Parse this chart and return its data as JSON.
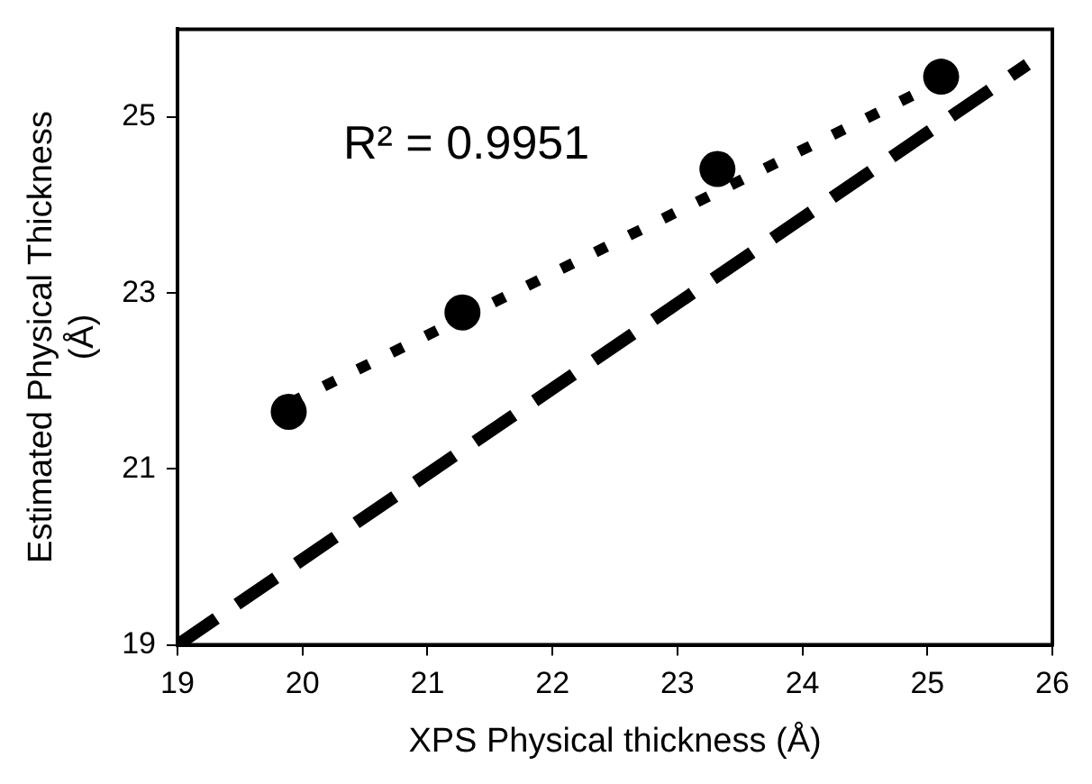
{
  "chart_data": {
    "type": "scatter",
    "xlabel": "XPS Physical thickness (Å)",
    "ylabel": "Estimated Physical Thickness\n(Å)",
    "xlim": [
      19,
      26
    ],
    "ylim": [
      19,
      26
    ],
    "xticks": [
      19,
      20,
      21,
      22,
      23,
      24,
      25,
      26
    ],
    "yticks": [
      19,
      21,
      23,
      25
    ],
    "grid": false,
    "legend": false,
    "marker": "circle",
    "series": [
      {
        "color": "#000000",
        "x": [
          19.89,
          21.28,
          23.32,
          25.11
        ],
        "values": [
          21.65,
          22.78,
          24.41,
          25.46
        ]
      },
      {
        "type": "line",
        "color": "#000000",
        "line_style": "dotted",
        "marker": "none",
        "x": [
          19.9,
          25.1
        ],
        "values": [
          21.75,
          25.4
        ]
      },
      {
        "type": "line",
        "color": "#000000",
        "line_style": "dashed",
        "marker": "none",
        "x": [
          19,
          25.8
        ],
        "values": [
          19,
          25.6
        ]
      }
    ],
    "annotations": [
      "R² = 0.9951"
    ]
  }
}
